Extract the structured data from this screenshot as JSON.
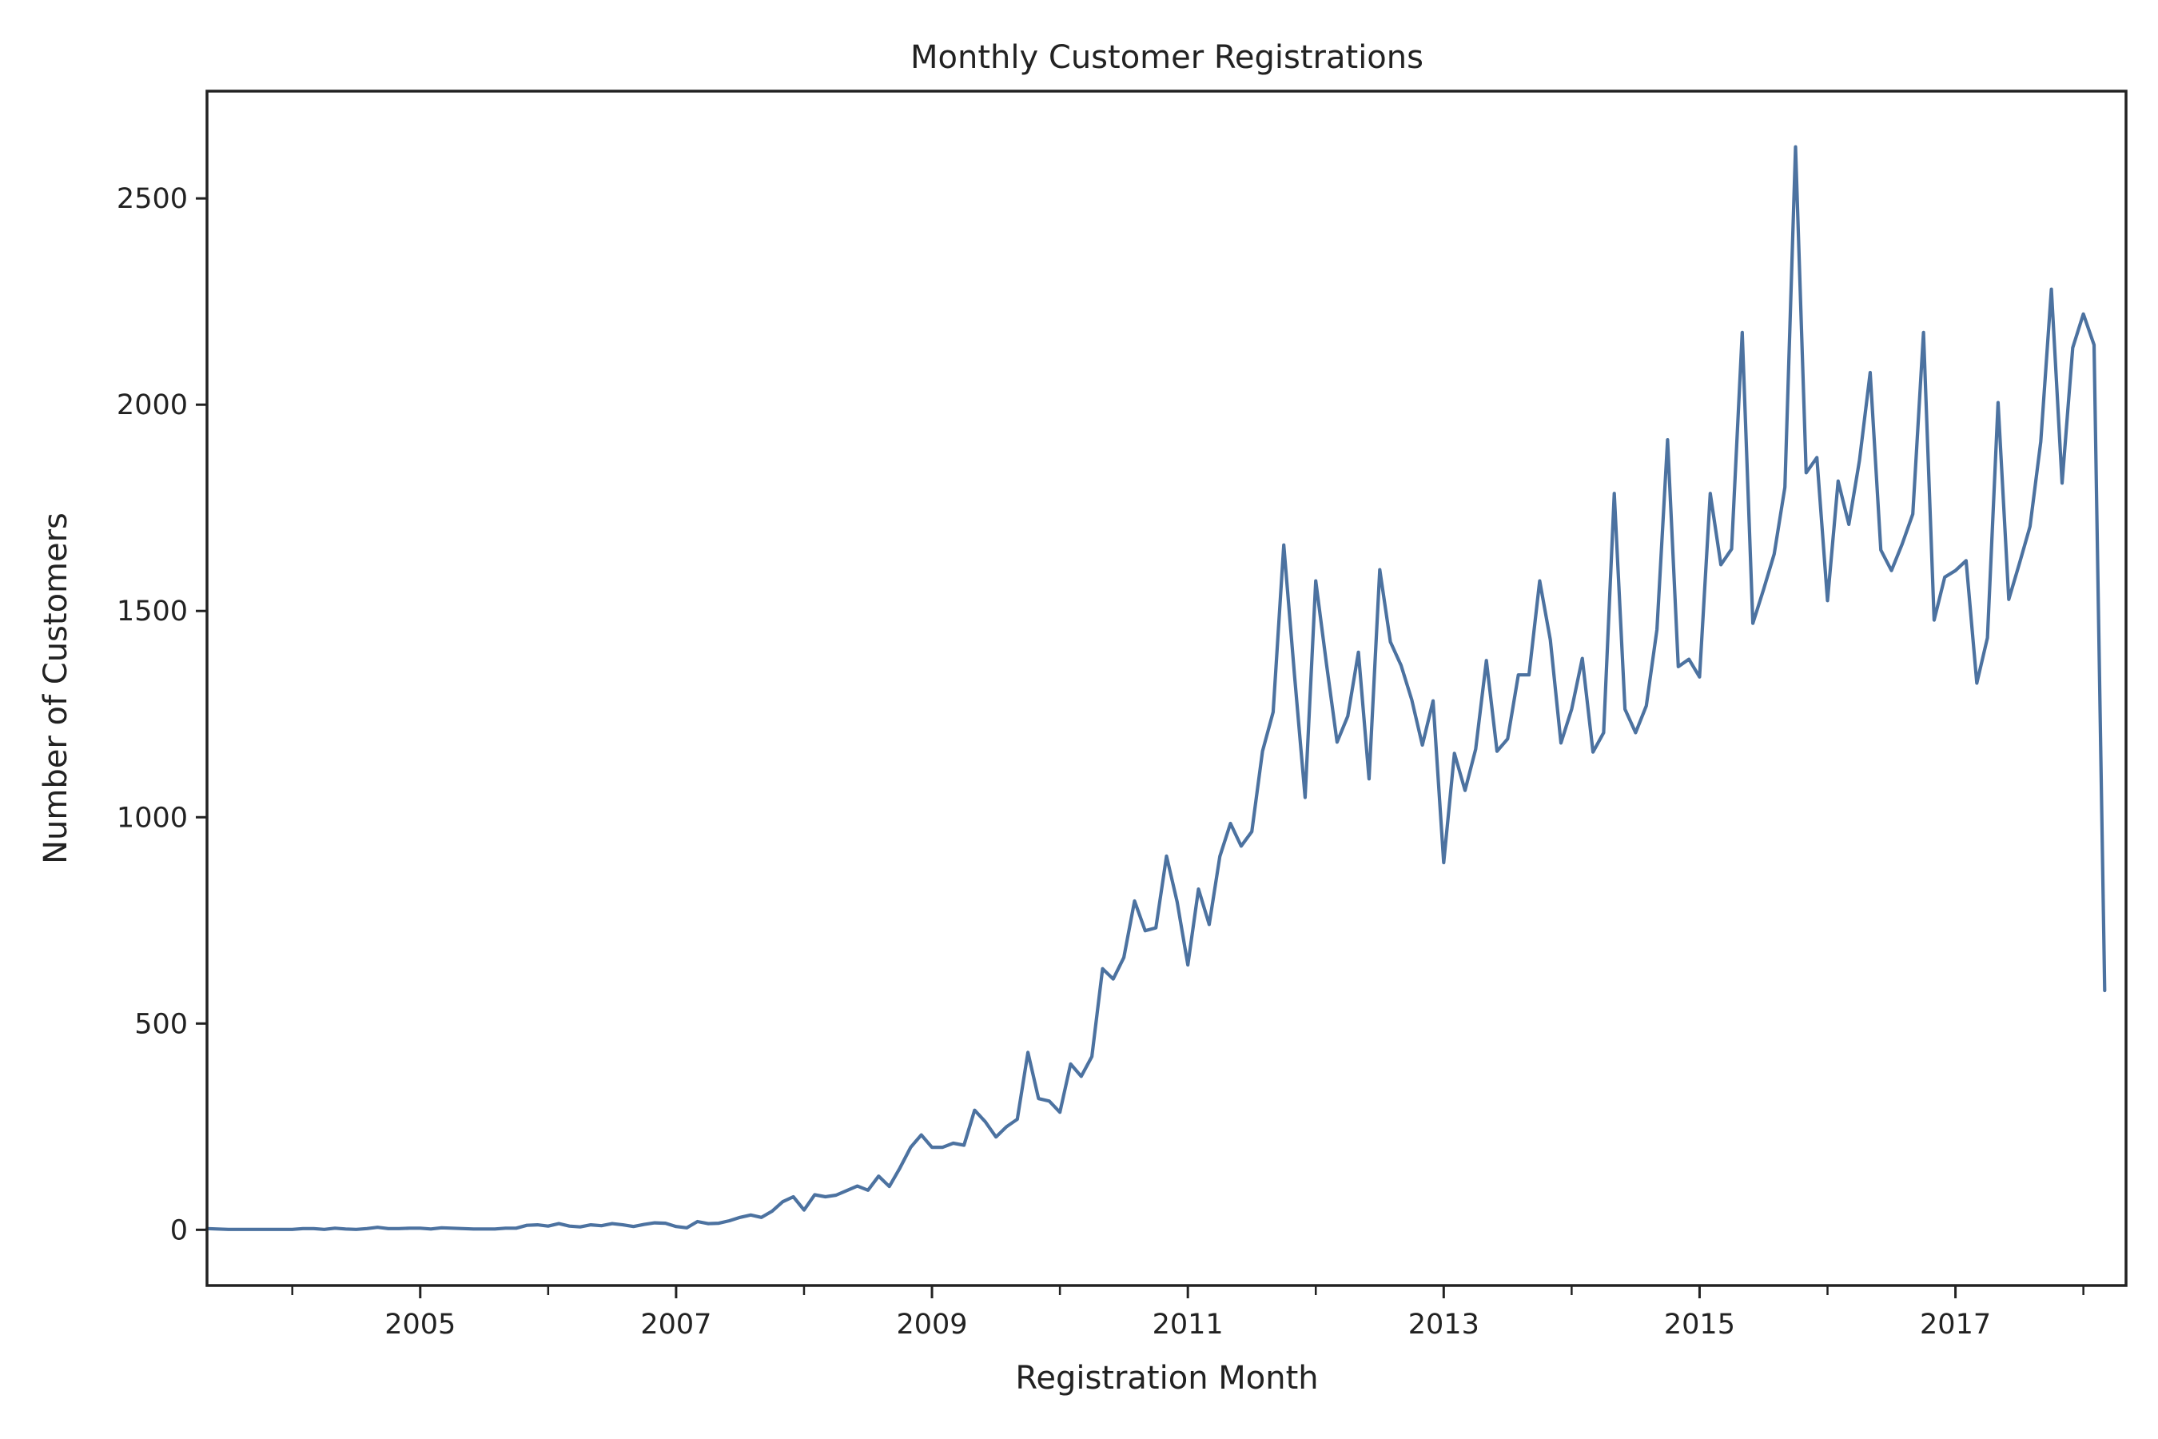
{
  "chart_data": {
    "type": "line",
    "title": "Monthly Customer Registrations",
    "xlabel": "Registration Month",
    "ylabel": "Number of Customers",
    "x_start": "2003-05",
    "x_end": "2018-05",
    "xlim": [
      "2003-05",
      "2018-05"
    ],
    "ylim": [
      -135,
      2760
    ],
    "yticks": [
      0,
      500,
      1000,
      1500,
      2000,
      2500
    ],
    "xticks_major": [
      {
        "date": "2005-01",
        "label": "2005"
      },
      {
        "date": "2007-01",
        "label": "2007"
      },
      {
        "date": "2009-01",
        "label": "2009"
      },
      {
        "date": "2011-01",
        "label": "2011"
      },
      {
        "date": "2013-01",
        "label": "2013"
      },
      {
        "date": "2015-01",
        "label": "2015"
      },
      {
        "date": "2017-01",
        "label": "2017"
      }
    ],
    "xticks_minor": [
      "2004-01",
      "2006-01",
      "2008-01",
      "2010-01",
      "2012-01",
      "2014-01",
      "2016-01",
      "2018-01"
    ],
    "grid": false,
    "series": [
      {
        "color": "#4c72a0",
        "values": [
          3,
          2,
          1,
          1,
          1,
          1,
          1,
          1,
          1,
          3,
          3,
          1,
          4,
          2,
          1,
          3,
          6,
          3,
          3,
          4,
          4,
          2,
          5,
          4,
          3,
          2,
          2,
          2,
          4,
          4,
          11,
          12,
          9,
          15,
          9,
          7,
          12,
          10,
          15,
          12,
          8,
          13,
          17,
          16,
          8,
          5,
          20,
          15,
          16,
          22,
          30,
          36,
          30,
          45,
          68,
          80,
          48,
          85,
          80,
          84,
          95,
          106,
          96,
          130,
          105,
          150,
          200,
          230,
          200,
          200,
          210,
          205,
          290,
          262,
          225,
          250,
          268,
          430,
          318,
          312,
          285,
          402,
          372,
          420,
          633,
          608,
          660,
          797,
          725,
          732,
          906,
          795,
          642,
          826,
          740,
          905,
          985,
          930,
          965,
          1160,
          1255,
          1660,
          1345,
          1048,
          1573,
          1372,
          1182,
          1245,
          1400,
          1093,
          1600,
          1425,
          1368,
          1285,
          1175,
          1282,
          890,
          1155,
          1065,
          1165,
          1380,
          1160,
          1190,
          1345,
          1345,
          1573,
          1430,
          1180,
          1262,
          1385,
          1158,
          1205,
          1785,
          1262,
          1205,
          1270,
          1455,
          1915,
          1365,
          1383,
          1340,
          1785,
          1612,
          1650,
          2175,
          1470,
          1552,
          1638,
          1800,
          2625,
          1835,
          1872,
          1525,
          1815,
          1710,
          1865,
          2078,
          1648,
          1598,
          1662,
          1735,
          2175,
          1478,
          1582,
          1598,
          1622,
          1325,
          1435,
          2005,
          1528,
          1615,
          1705,
          1910,
          2280,
          1810,
          2138,
          2220,
          2145,
          580
        ]
      }
    ]
  }
}
